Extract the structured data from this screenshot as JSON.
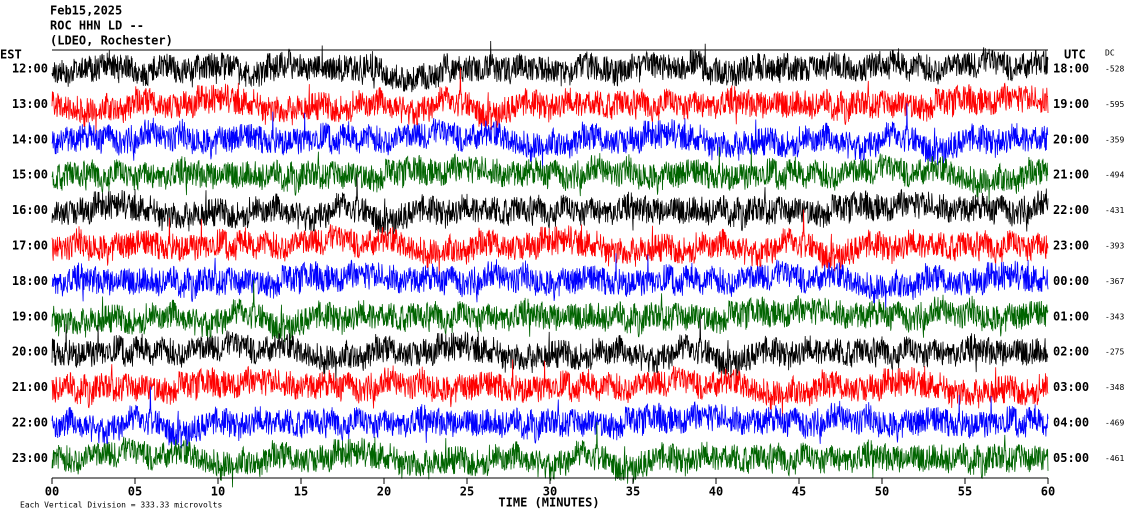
{
  "header": {
    "lines": [
      "Feb15,2025",
      "ROC HHN LD --",
      "(LDEO, Rochester)"
    ]
  },
  "left_label": "EST",
  "right_label": "UTC",
  "dc_label": "DC",
  "rows": [
    {
      "est": "12:00",
      "utc": "18:00",
      "dc": "-528"
    },
    {
      "est": "13:00",
      "utc": "19:00",
      "dc": "-595"
    },
    {
      "est": "14:00",
      "utc": "20:00",
      "dc": "-359"
    },
    {
      "est": "15:00",
      "utc": "21:00",
      "dc": "-494"
    },
    {
      "est": "16:00",
      "utc": "22:00",
      "dc": "-431"
    },
    {
      "est": "17:00",
      "utc": "23:00",
      "dc": "-393"
    },
    {
      "est": "18:00",
      "utc": "00:00",
      "dc": "-367"
    },
    {
      "est": "19:00",
      "utc": "01:00",
      "dc": "-343"
    },
    {
      "est": "20:00",
      "utc": "02:00",
      "dc": "-275"
    },
    {
      "est": "21:00",
      "utc": "03:00",
      "dc": "-348"
    },
    {
      "est": "22:00",
      "utc": "04:00",
      "dc": "-469"
    },
    {
      "est": "23:00",
      "utc": "05:00",
      "dc": "-461"
    }
  ],
  "x_ticks": [
    "00",
    "05",
    "10",
    "15",
    "20",
    "25",
    "30",
    "35",
    "40",
    "45",
    "50",
    "55",
    "60"
  ],
  "x_label": "TIME (MINUTES)",
  "footer": "Each Vertical Division =  333.33 microvolts"
}
